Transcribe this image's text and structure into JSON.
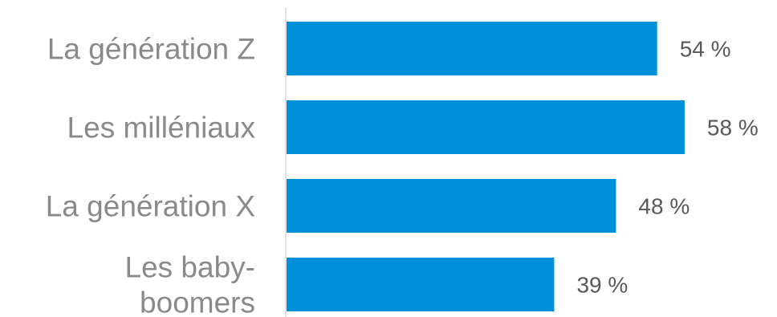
{
  "chart_data": {
    "type": "bar",
    "orientation": "horizontal",
    "categories": [
      [
        "La génération Z"
      ],
      [
        "Les milléniaux"
      ],
      [
        "La génération X"
      ],
      [
        "Les baby-",
        "boomers"
      ]
    ],
    "values": [
      54,
      58,
      48,
      39
    ],
    "value_labels": [
      "54 %",
      "58 %",
      "48 %",
      "39 %"
    ],
    "xlim": [
      0,
      60
    ],
    "bar_color": "#0090D9",
    "axis_color": "#D9D9D9",
    "grid": false,
    "legend": "none"
  }
}
